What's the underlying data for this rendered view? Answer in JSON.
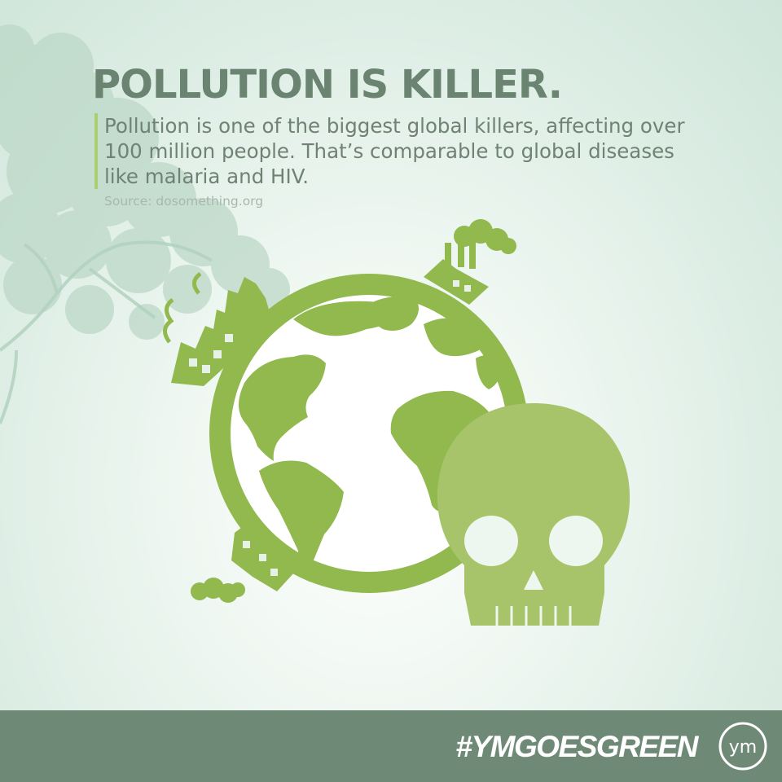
{
  "headline": "POLLUTION IS KILLER.",
  "body": "Pollution is one of the biggest global killers, affecting over 100 million people. That’s comparable to global diseases like malaria and HIV.",
  "source": "Source: dosomething.org",
  "footer": {
    "hashtag": "#YMGOESGREEN",
    "logo_text": "ym"
  },
  "colors": {
    "headline": "#6b8471",
    "accent_bar": "#a9cf6f",
    "earth_green": "#91b94e",
    "skull_green": "#a8c46a",
    "footer_bg": "#6e8a77"
  },
  "icons": [
    "tree-silhouette",
    "globe-icon",
    "factory-icon",
    "smoke-cloud-icon",
    "skull-icon",
    "ym-logo"
  ]
}
